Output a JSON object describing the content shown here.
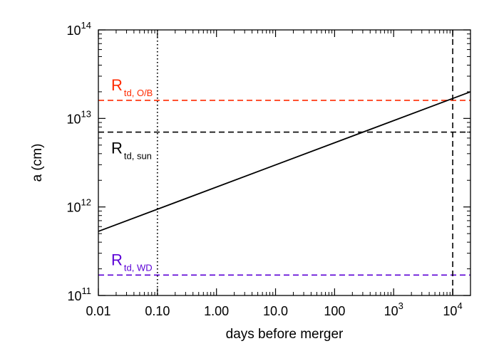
{
  "colors": {
    "black": "#000000",
    "red": "#ff2a00",
    "purple": "#5b00d6"
  },
  "chart_data": {
    "type": "line",
    "xlabel": "days before merger",
    "ylabel": "a (cm)",
    "xscale": "log",
    "yscale": "log",
    "xlim": [
      0.01,
      20000
    ],
    "ylim": [
      100000000000.0,
      100000000000000.0
    ],
    "grid": false,
    "x_ticks": [
      {
        "value": 0.01,
        "label": "0.01"
      },
      {
        "value": 0.1,
        "label": "0.10"
      },
      {
        "value": 1,
        "label": "1.00"
      },
      {
        "value": 10,
        "label": "10.0"
      },
      {
        "value": 100,
        "label": "100"
      },
      {
        "value": 1000,
        "base": "10",
        "exp": "3"
      },
      {
        "value": 10000,
        "base": "10",
        "exp": "4"
      }
    ],
    "y_ticks": [
      {
        "value": 100000000000.0,
        "base": "10",
        "exp": "11"
      },
      {
        "value": 1000000000000.0,
        "base": "10",
        "exp": "12"
      },
      {
        "value": 10000000000000.0,
        "base": "10",
        "exp": "13"
      },
      {
        "value": 100000000000000.0,
        "base": "10",
        "exp": "14"
      }
    ],
    "series": [
      {
        "x": [
          0.01,
          20000
        ],
        "y": [
          530000000000.0,
          20000000000000.0
        ],
        "color": "#000000",
        "style": "solid"
      }
    ],
    "hlines": [
      {
        "y": 16000000000000.0,
        "color": "#ff2a00",
        "style": "dashed",
        "label_main": "R",
        "label_sub": "td, O/B"
      },
      {
        "y": 7000000000000.0,
        "color": "#000000",
        "style": "dashed",
        "label_main": "R",
        "label_sub": "td, sun"
      },
      {
        "y": 170000000000.0,
        "color": "#5b00d6",
        "style": "dashed",
        "label_main": "R",
        "label_sub": "td, WD"
      }
    ],
    "vlines": [
      {
        "x": 0.1,
        "color": "#000000",
        "style": "dotted"
      },
      {
        "x": 10000,
        "color": "#000000",
        "style": "dashed"
      }
    ]
  }
}
